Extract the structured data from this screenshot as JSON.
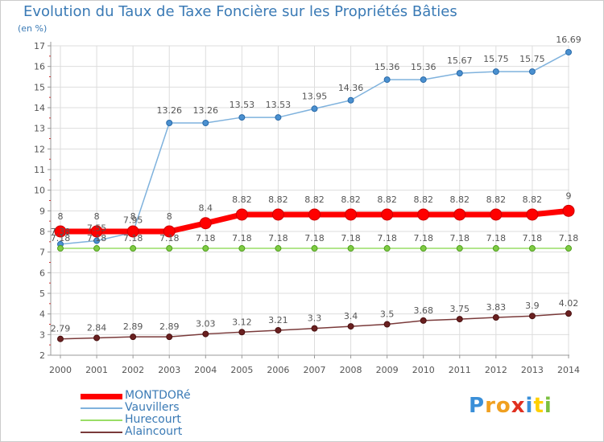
{
  "title": "Evolution du Taux de Taxe Foncière sur les Propriétés Bâties",
  "unit_label": "(en %)",
  "chart_data": {
    "type": "line",
    "title": "Evolution du Taux de Taxe Foncière sur les Propriétés Bâties",
    "ylabel": "(en %)",
    "xlabel": "",
    "x": [
      "2000",
      "2001",
      "2002",
      "2003",
      "2004",
      "2005",
      "2006",
      "2007",
      "2008",
      "2009",
      "2010",
      "2011",
      "2012",
      "2013",
      "2014"
    ],
    "ylim": [
      2,
      17
    ],
    "yticks": [
      2,
      3,
      4,
      5,
      6,
      7,
      8,
      9,
      10,
      11,
      12,
      13,
      14,
      15,
      16,
      17
    ],
    "grid": true,
    "legend": "bottom-left",
    "series": [
      {
        "name": "MONTDORé",
        "color": "#ff0000",
        "values": [
          8,
          8,
          8,
          8,
          8.4,
          8.82,
          8.82,
          8.82,
          8.82,
          8.82,
          8.82,
          8.82,
          8.82,
          8.82,
          9
        ],
        "labels": [
          "8",
          "8",
          "8",
          "8",
          "8.4",
          "8.82",
          "8.82",
          "8.82",
          "8.82",
          "8.82",
          "8.82",
          "8.82",
          "8.82",
          "8.82",
          "9"
        ]
      },
      {
        "name": "Vauvillers",
        "color": "#7fb2dd",
        "values": [
          7.38,
          7.55,
          7.95,
          13.26,
          13.26,
          13.53,
          13.53,
          13.95,
          14.36,
          15.36,
          15.36,
          15.67,
          15.75,
          15.75,
          16.69
        ],
        "labels": [
          "7.38",
          "7.55",
          "7.95",
          "13.26",
          "13.26",
          "13.53",
          "13.53",
          "13.95",
          "14.36",
          "15.36",
          "15.36",
          "15.67",
          "15.75",
          "15.75",
          "16.69"
        ]
      },
      {
        "name": "Hurecourt",
        "color": "#99dd66",
        "values": [
          7.18,
          7.18,
          7.18,
          7.18,
          7.18,
          7.18,
          7.18,
          7.18,
          7.18,
          7.18,
          7.18,
          7.18,
          7.18,
          7.18,
          7.18
        ],
        "labels": [
          "7.18",
          "7.18",
          "7.18",
          "7.18",
          "7.18",
          "7.18",
          "7.18",
          "7.18",
          "7.18",
          "7.18",
          "7.18",
          "7.18",
          "7.18",
          "7.18",
          "7.18"
        ]
      },
      {
        "name": "Alaincourt",
        "color": "#7a3a3a",
        "values": [
          2.79,
          2.84,
          2.89,
          2.89,
          3.03,
          3.12,
          3.21,
          3.3,
          3.4,
          3.5,
          3.68,
          3.75,
          3.83,
          3.9,
          4.02
        ],
        "labels": [
          "2.79",
          "2.84",
          "2.89",
          "2.89",
          "3.03",
          "3.12",
          "3.21",
          "3.3",
          "3.4",
          "3.5",
          "3.68",
          "3.75",
          "3.83",
          "3.9",
          "4.02"
        ]
      }
    ]
  },
  "logo": {
    "text": "Proxiti",
    "colors": [
      "#3a8fd8",
      "#f0a020",
      "#f0a020",
      "#e03020",
      "#3a8fd8",
      "#ffd000",
      "#7cc040"
    ]
  }
}
